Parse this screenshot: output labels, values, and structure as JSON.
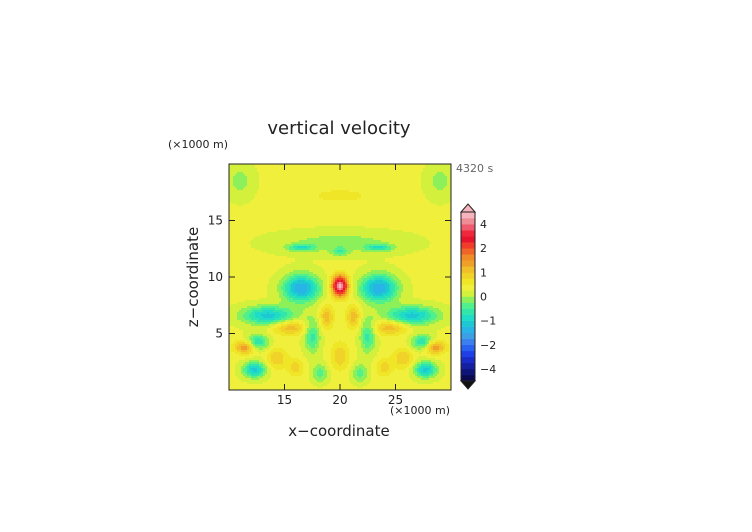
{
  "chart_data": {
    "type": "heatmap",
    "title": "vertical velocity",
    "time_label": "4320 s",
    "xlabel": "x−coordinate",
    "ylabel": "z−coordinate",
    "x_unit": "(×1000 m)",
    "y_unit": "(×1000 m)",
    "xlim": [
      10,
      30
    ],
    "ylim": [
      0,
      20
    ],
    "xticks": [
      15,
      20,
      25
    ],
    "yticks": [
      5,
      10,
      15
    ],
    "colorbar": {
      "levels": [
        -5,
        -4.5,
        -4,
        -3.5,
        -3,
        -2.5,
        -2,
        -1.75,
        -1.5,
        -1.25,
        -1,
        -0.75,
        -0.5,
        -0.25,
        0,
        0.25,
        0.5,
        0.75,
        1,
        1.25,
        1.5,
        1.75,
        2,
        2.5,
        3,
        3.5,
        4,
        4.5,
        5
      ],
      "tick_labels": [
        "-4",
        "-2",
        "-1",
        "0",
        "1",
        "2",
        "4"
      ],
      "colors": [
        "#0a0a50",
        "#0f1478",
        "#1420a0",
        "#1a2cc8",
        "#1e40e6",
        "#2860f0",
        "#3c80f0",
        "#3ca0e6",
        "#28b4e6",
        "#1ec8d2",
        "#1edcc8",
        "#32e6aa",
        "#50f08c",
        "#8cf05a",
        "#d2f03c",
        "#f0f03c",
        "#f0e628",
        "#f0d228",
        "#f0be28",
        "#f0a028",
        "#f08c28",
        "#f06428",
        "#f03c28",
        "#e6142d",
        "#f0283c",
        "#f05a6e",
        "#f08c96",
        "#f5b4be"
      ]
    },
    "features": [
      {
        "x": 20,
        "z": 9.2,
        "sx": 0.7,
        "sz": 0.9,
        "w": 3.2
      },
      {
        "x": 20,
        "z": 9.2,
        "sx": 0.35,
        "sz": 0.4,
        "w": 1.3
      },
      {
        "x": 20,
        "z": 17.2,
        "sx": 2.2,
        "sz": 0.5,
        "w": 0.45
      },
      {
        "x": 11,
        "z": 18.5,
        "sx": 1.2,
        "sz": 1.5,
        "w": -0.4
      },
      {
        "x": 29,
        "z": 18.5,
        "sx": 1.2,
        "sz": 1.5,
        "w": -0.4
      },
      {
        "x": 20,
        "z": 13,
        "sx": 5.5,
        "sz": 1.0,
        "w": -0.45
      },
      {
        "x": 16.5,
        "z": 12.6,
        "sx": 1.2,
        "sz": 0.3,
        "w": -0.9
      },
      {
        "x": 23.5,
        "z": 12.6,
        "sx": 1.2,
        "sz": 0.3,
        "w": -0.9
      },
      {
        "x": 20,
        "z": 12.2,
        "sx": 0.7,
        "sz": 0.4,
        "w": -0.6
      },
      {
        "x": 16.5,
        "z": 9.0,
        "sx": 1.6,
        "sz": 1.2,
        "w": -1.8
      },
      {
        "x": 23.5,
        "z": 9.0,
        "sx": 1.6,
        "sz": 1.2,
        "w": -1.8
      },
      {
        "x": 13.5,
        "z": 6.6,
        "sx": 2.3,
        "sz": 0.8,
        "w": -1.4
      },
      {
        "x": 26.5,
        "z": 6.6,
        "sx": 2.3,
        "sz": 0.8,
        "w": -1.4
      },
      {
        "x": 15.5,
        "z": 5.5,
        "sx": 1.5,
        "sz": 0.6,
        "w": 0.9
      },
      {
        "x": 24.5,
        "z": 5.5,
        "sx": 1.5,
        "sz": 0.6,
        "w": 0.9
      },
      {
        "x": 12.5,
        "z": 4.2,
        "sx": 1.0,
        "sz": 0.7,
        "w": -1.2
      },
      {
        "x": 27.5,
        "z": 4.2,
        "sx": 1.0,
        "sz": 0.7,
        "w": -1.2
      },
      {
        "x": 11.5,
        "z": 3.8,
        "sx": 1.0,
        "sz": 0.6,
        "w": 1.3
      },
      {
        "x": 28.5,
        "z": 3.8,
        "sx": 1.0,
        "sz": 0.6,
        "w": 1.3
      },
      {
        "x": 12.3,
        "z": 1.8,
        "sx": 1.0,
        "sz": 0.7,
        "w": -1.4
      },
      {
        "x": 27.7,
        "z": 1.8,
        "sx": 1.0,
        "sz": 0.7,
        "w": -1.4
      },
      {
        "x": 14.3,
        "z": 2.8,
        "sx": 0.9,
        "sz": 0.9,
        "w": 0.7
      },
      {
        "x": 25.7,
        "z": 2.8,
        "sx": 0.9,
        "sz": 0.9,
        "w": 0.7
      },
      {
        "x": 17.5,
        "z": 4.8,
        "sx": 0.7,
        "sz": 1.5,
        "w": -0.9
      },
      {
        "x": 22.5,
        "z": 4.8,
        "sx": 0.7,
        "sz": 1.5,
        "w": -0.9
      },
      {
        "x": 18.8,
        "z": 6.5,
        "sx": 0.6,
        "sz": 1.0,
        "w": 0.9
      },
      {
        "x": 21.2,
        "z": 6.5,
        "sx": 0.6,
        "sz": 1.0,
        "w": 0.9
      },
      {
        "x": 20,
        "z": 3.0,
        "sx": 0.8,
        "sz": 1.2,
        "w": 0.7
      },
      {
        "x": 18.2,
        "z": 1.5,
        "sx": 0.7,
        "sz": 0.8,
        "w": -0.7
      },
      {
        "x": 21.8,
        "z": 1.5,
        "sx": 0.7,
        "sz": 0.8,
        "w": -0.7
      },
      {
        "x": 16.0,
        "z": 2.0,
        "sx": 0.7,
        "sz": 0.8,
        "w": 0.6
      },
      {
        "x": 24.0,
        "z": 2.0,
        "sx": 0.7,
        "sz": 0.8,
        "w": 0.6
      }
    ]
  }
}
